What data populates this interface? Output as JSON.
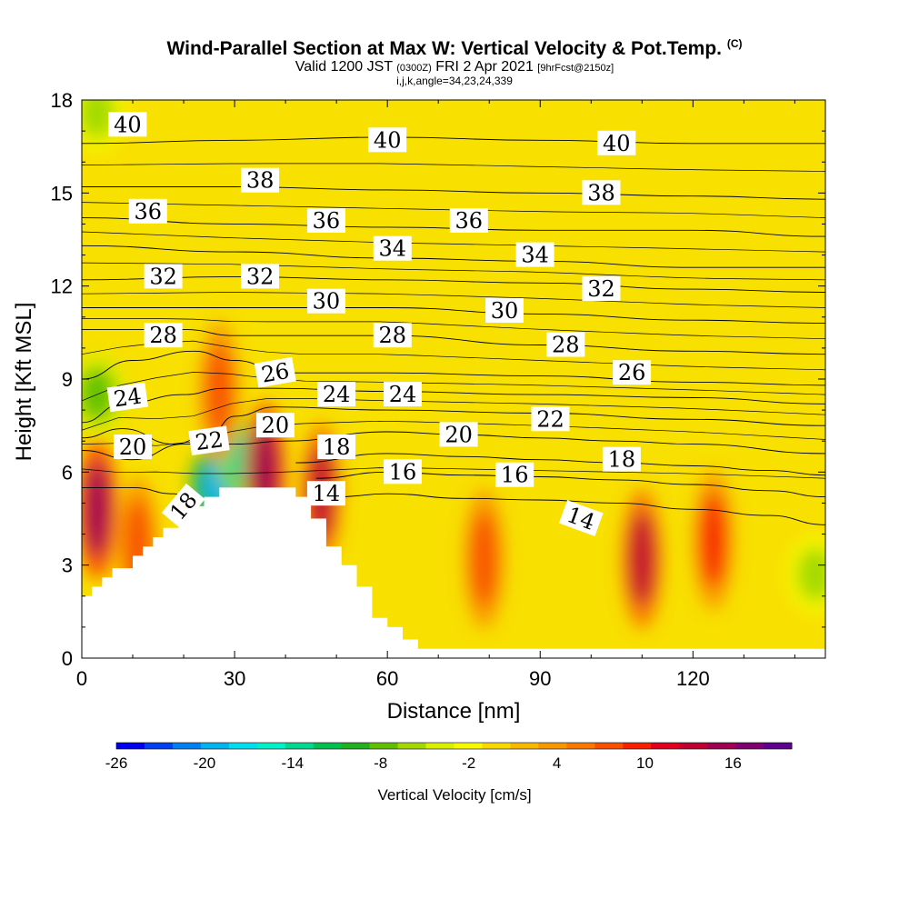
{
  "header": {
    "title": "Wind-Parallel Section at Max W: Vertical Velocity & Pot.Temp.",
    "copyright": "(C)",
    "valid_prefix": "Valid 1200 JST",
    "utc": "(0300Z)",
    "date": "FRI 2 Apr 2021",
    "forecast": "[9hrFcst@2150z]",
    "indices": "i,j,k,angle=34,23,24,339"
  },
  "chart_data": {
    "type": "heatmap",
    "title": "Wind-Parallel Section at Max W: Vertical Velocity & Pot.Temp.",
    "xlabel": "Distance [nm]",
    "ylabel": "Height [Kft MSL]",
    "xlim": [
      0,
      146
    ],
    "ylim": [
      0,
      18
    ],
    "x_ticks": [
      0,
      30,
      60,
      90,
      120
    ],
    "y_ticks": [
      0,
      3,
      6,
      9,
      12,
      15,
      18
    ],
    "x_tick_labels": [
      "0",
      "30",
      "60",
      "90",
      "120"
    ],
    "y_tick_labels": [
      "0",
      "3",
      "6",
      "9",
      "12",
      "15",
      "18"
    ],
    "colorbar": {
      "label": "Vertical Velocity [cm/s]",
      "range": [
        -26,
        20
      ],
      "tick_values": [
        -26,
        -20,
        -14,
        -8,
        -2,
        4,
        10,
        16
      ],
      "tick_labels": [
        "-26",
        "-20",
        "-14",
        "-8",
        "-2",
        "4",
        "10",
        "16"
      ],
      "colors": [
        "#0000f0",
        "#0040f0",
        "#0080f0",
        "#00b4f0",
        "#00dcf0",
        "#00f0c8",
        "#00d890",
        "#00c050",
        "#20b020",
        "#60c000",
        "#a0d800",
        "#d8f000",
        "#f8f800",
        "#f8d800",
        "#f8b800",
        "#f89800",
        "#f87800",
        "#f85000",
        "#f82000",
        "#e00020",
        "#c00030",
        "#a00050",
        "#800070",
        "#600090"
      ]
    },
    "terrain_profile": [
      [
        0,
        2
      ],
      [
        2,
        2
      ],
      [
        2,
        2.3
      ],
      [
        4,
        2.3
      ],
      [
        4,
        2.6
      ],
      [
        6,
        2.6
      ],
      [
        6,
        2.9
      ],
      [
        10,
        2.9
      ],
      [
        10,
        3.3
      ],
      [
        12,
        3.3
      ],
      [
        12,
        3.6
      ],
      [
        14,
        3.6
      ],
      [
        14,
        3.9
      ],
      [
        16,
        3.9
      ],
      [
        16,
        4.2
      ],
      [
        19,
        4.2
      ],
      [
        19,
        4.5
      ],
      [
        21,
        4.5
      ],
      [
        21,
        4.9
      ],
      [
        24,
        4.9
      ],
      [
        24,
        5.2
      ],
      [
        27,
        5.2
      ],
      [
        27,
        5.5
      ],
      [
        42,
        5.5
      ],
      [
        42,
        5.2
      ],
      [
        45,
        5.2
      ],
      [
        45,
        4.5
      ],
      [
        48,
        4.5
      ],
      [
        48,
        3.6
      ],
      [
        51,
        3.6
      ],
      [
        51,
        3.0
      ],
      [
        54,
        3.0
      ],
      [
        54,
        2.3
      ],
      [
        57,
        2.3
      ],
      [
        57,
        1.3
      ],
      [
        60,
        1.3
      ],
      [
        60,
        1.0
      ],
      [
        63,
        1.0
      ],
      [
        63,
        0.6
      ],
      [
        66,
        0.6
      ],
      [
        66,
        0.3
      ],
      [
        146,
        0.3
      ]
    ],
    "vertical_velocity_cells": [
      {
        "x": 3,
        "y": 4.8,
        "value": 16
      },
      {
        "x": 11,
        "y": 3.6,
        "value": 8
      },
      {
        "x": 27,
        "y": 5.6,
        "value": -20
      },
      {
        "x": 32,
        "y": 6.4,
        "value": -14
      },
      {
        "x": 27,
        "y": 8.6,
        "value": 8
      },
      {
        "x": 36,
        "y": 6.0,
        "value": 16
      },
      {
        "x": 47,
        "y": 5.3,
        "value": 14
      },
      {
        "x": 79,
        "y": 3.2,
        "value": 8
      },
      {
        "x": 110,
        "y": 3.2,
        "value": 14
      },
      {
        "x": 124,
        "y": 3.8,
        "value": 10
      },
      {
        "x": 144,
        "y": 2.7,
        "value": -6
      },
      {
        "x": 3,
        "y": 17.6,
        "value": -6
      },
      {
        "x": 3,
        "y": 8.5,
        "value": -8
      }
    ],
    "series": [
      {
        "name": "14",
        "values": [
          [
            50,
            5.2
          ],
          [
            60,
            5.3
          ],
          [
            75,
            5.15
          ],
          [
            90,
            5.1
          ],
          [
            105,
            5.0
          ],
          [
            120,
            4.8
          ],
          [
            135,
            4.6
          ],
          [
            146,
            4.3
          ]
        ]
      },
      {
        "name": "16",
        "values": [
          [
            46,
            5.8
          ],
          [
            60,
            6.0
          ],
          [
            75,
            5.9
          ],
          [
            90,
            5.85
          ],
          [
            105,
            5.75
          ],
          [
            120,
            5.6
          ],
          [
            135,
            5.4
          ],
          [
            146,
            5.2
          ]
        ]
      },
      {
        "name": "18",
        "values": [
          [
            42,
            6.3
          ],
          [
            60,
            6.6
          ],
          [
            75,
            6.5
          ],
          [
            90,
            6.4
          ],
          [
            105,
            6.3
          ],
          [
            120,
            6.2
          ],
          [
            135,
            6.05
          ],
          [
            146,
            5.9
          ]
        ]
      },
      {
        "name": "18",
        "values": [
          [
            0,
            5.5
          ],
          [
            10,
            5.5
          ],
          [
            18,
            5.3
          ],
          [
            22,
            5.0
          ]
        ]
      },
      {
        "name": "20",
        "values": [
          [
            0,
            6.7
          ],
          [
            10,
            6.4
          ],
          [
            20,
            6.9
          ],
          [
            30,
            6.9
          ],
          [
            40,
            7.0
          ],
          [
            60,
            7.3
          ],
          [
            75,
            7.2
          ],
          [
            90,
            7.1
          ],
          [
            105,
            7.0
          ],
          [
            120,
            6.9
          ],
          [
            146,
            6.6
          ]
        ]
      },
      {
        "name": "22",
        "values": [
          [
            0,
            7.1
          ],
          [
            8,
            7.4
          ],
          [
            18,
            6.9
          ],
          [
            25,
            7.2
          ],
          [
            30,
            7.8
          ],
          [
            38,
            8.1
          ],
          [
            60,
            8.0
          ],
          [
            90,
            7.9
          ],
          [
            120,
            7.7
          ],
          [
            146,
            7.5
          ]
        ]
      },
      {
        "name": "24",
        "values": [
          [
            0,
            7.6
          ],
          [
            8,
            8.2
          ],
          [
            20,
            8.5
          ],
          [
            28,
            8.7
          ],
          [
            38,
            8.7
          ],
          [
            60,
            8.6
          ],
          [
            90,
            8.5
          ],
          [
            120,
            8.4
          ],
          [
            146,
            8.2
          ]
        ]
      },
      {
        "name": "26",
        "values": [
          [
            0,
            9.0
          ],
          [
            10,
            9.6
          ],
          [
            22,
            9.9
          ],
          [
            30,
            9.6
          ],
          [
            40,
            9.2
          ],
          [
            60,
            9.2
          ],
          [
            90,
            9.1
          ],
          [
            120,
            8.9
          ],
          [
            146,
            8.8
          ]
        ]
      },
      {
        "name": "28",
        "values": [
          [
            0,
            10.6
          ],
          [
            20,
            10.6
          ],
          [
            30,
            10.4
          ],
          [
            60,
            10.4
          ],
          [
            90,
            10.1
          ],
          [
            120,
            9.9
          ],
          [
            146,
            9.8
          ]
        ]
      },
      {
        "name": "30",
        "values": [
          [
            0,
            11.3
          ],
          [
            30,
            11.3
          ],
          [
            60,
            11.3
          ],
          [
            90,
            11.1
          ],
          [
            120,
            10.9
          ],
          [
            146,
            10.8
          ]
        ]
      },
      {
        "name": "32",
        "values": [
          [
            0,
            12.2
          ],
          [
            30,
            12.3
          ],
          [
            60,
            12.2
          ],
          [
            90,
            12.1
          ],
          [
            120,
            11.9
          ],
          [
            146,
            11.8
          ]
        ]
      },
      {
        "name": "34",
        "values": [
          [
            0,
            13.3
          ],
          [
            30,
            13.1
          ],
          [
            60,
            12.9
          ],
          [
            90,
            12.8
          ],
          [
            120,
            12.6
          ],
          [
            146,
            12.6
          ]
        ]
      },
      {
        "name": "36",
        "values": [
          [
            0,
            14.2
          ],
          [
            30,
            14.0
          ],
          [
            60,
            13.9
          ],
          [
            90,
            13.8
          ],
          [
            120,
            13.8
          ],
          [
            146,
            13.6
          ]
        ]
      },
      {
        "name": "38",
        "values": [
          [
            0,
            15.2
          ],
          [
            30,
            15.2
          ],
          [
            60,
            15.1
          ],
          [
            90,
            15.0
          ],
          [
            120,
            14.9
          ],
          [
            146,
            14.8
          ]
        ]
      },
      {
        "name": "40",
        "values": [
          [
            0,
            16.6
          ],
          [
            30,
            16.7
          ],
          [
            60,
            16.8
          ],
          [
            90,
            16.7
          ],
          [
            120,
            16.6
          ],
          [
            146,
            16.6
          ]
        ]
      }
    ],
    "contour_labels": [
      {
        "text": "40",
        "x": 9,
        "y": 17.2,
        "angle": 0
      },
      {
        "text": "40",
        "x": 60,
        "y": 16.7,
        "angle": 0
      },
      {
        "text": "40",
        "x": 105,
        "y": 16.6,
        "angle": 0
      },
      {
        "text": "38",
        "x": 35,
        "y": 15.4,
        "angle": 0
      },
      {
        "text": "38",
        "x": 102,
        "y": 15.0,
        "angle": 0
      },
      {
        "text": "36",
        "x": 13,
        "y": 14.4,
        "angle": 0
      },
      {
        "text": "36",
        "x": 48,
        "y": 14.1,
        "angle": 0
      },
      {
        "text": "36",
        "x": 76,
        "y": 14.1,
        "angle": 0
      },
      {
        "text": "34",
        "x": 61,
        "y": 13.2,
        "angle": 0
      },
      {
        "text": "34",
        "x": 89,
        "y": 13.0,
        "angle": 0
      },
      {
        "text": "32",
        "x": 16,
        "y": 12.3,
        "angle": 0
      },
      {
        "text": "32",
        "x": 35,
        "y": 12.3,
        "angle": 0
      },
      {
        "text": "32",
        "x": 102,
        "y": 11.9,
        "angle": 0
      },
      {
        "text": "30",
        "x": 48,
        "y": 11.5,
        "angle": 0
      },
      {
        "text": "30",
        "x": 83,
        "y": 11.2,
        "angle": 0
      },
      {
        "text": "28",
        "x": 16,
        "y": 10.4,
        "angle": 0
      },
      {
        "text": "28",
        "x": 61,
        "y": 10.4,
        "angle": 0
      },
      {
        "text": "28",
        "x": 95,
        "y": 10.1,
        "angle": 0
      },
      {
        "text": "26",
        "x": 38,
        "y": 9.2,
        "angle": -10
      },
      {
        "text": "26",
        "x": 108,
        "y": 9.2,
        "angle": 0
      },
      {
        "text": "24",
        "x": 9,
        "y": 8.4,
        "angle": -8
      },
      {
        "text": "24",
        "x": 50,
        "y": 8.5,
        "angle": 0
      },
      {
        "text": "24",
        "x": 63,
        "y": 8.5,
        "angle": 0
      },
      {
        "text": "22",
        "x": 25,
        "y": 7.0,
        "angle": -8
      },
      {
        "text": "22",
        "x": 92,
        "y": 7.7,
        "angle": 0
      },
      {
        "text": "20",
        "x": 10,
        "y": 6.8,
        "angle": 0
      },
      {
        "text": "20",
        "x": 38,
        "y": 7.5,
        "angle": 0
      },
      {
        "text": "20",
        "x": 74,
        "y": 7.2,
        "angle": 0
      },
      {
        "text": "18",
        "x": 50,
        "y": 6.8,
        "angle": 0
      },
      {
        "text": "18",
        "x": 106,
        "y": 6.4,
        "angle": 0
      },
      {
        "text": "18",
        "x": 20,
        "y": 4.9,
        "angle": -50
      },
      {
        "text": "16",
        "x": 63,
        "y": 6.0,
        "angle": 0
      },
      {
        "text": "16",
        "x": 85,
        "y": 5.9,
        "angle": 0
      },
      {
        "text": "14",
        "x": 48,
        "y": 5.3,
        "angle": 0
      },
      {
        "text": "14",
        "x": 98,
        "y": 4.5,
        "angle": 20
      }
    ]
  }
}
